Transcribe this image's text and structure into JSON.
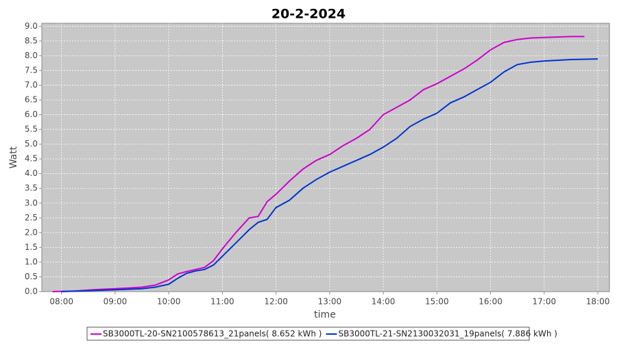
{
  "chart_data": {
    "type": "line",
    "title": "20-2-2024",
    "x_label": "time",
    "y_label": "Watt",
    "xlim": [
      "07:38",
      "18:13"
    ],
    "xticks": [
      "08:00",
      "09:00",
      "10:00",
      "11:00",
      "12:00",
      "13:00",
      "14:00",
      "15:00",
      "16:00",
      "17:00",
      "18:00"
    ],
    "ylim": [
      0,
      9.1
    ],
    "yticks": [
      {
        "value": 0,
        "label": "0.0"
      },
      {
        "value": 0.5,
        "label": "0.5"
      },
      {
        "value": 1,
        "label": "1.0"
      },
      {
        "value": 1.5,
        "label": "1.5"
      },
      {
        "value": 2,
        "label": "2.0"
      },
      {
        "value": 2.5,
        "label": "2.5"
      },
      {
        "value": 3,
        "label": "3.0"
      },
      {
        "value": 3.5,
        "label": "3.5"
      },
      {
        "value": 4,
        "label": "4.0"
      },
      {
        "value": 4.5,
        "label": "4.5"
      },
      {
        "value": 5,
        "label": "5.0"
      },
      {
        "value": 5.5,
        "label": "5.5"
      },
      {
        "value": 6,
        "label": "6.0"
      },
      {
        "value": 6.5,
        "label": "6.5"
      },
      {
        "value": 7,
        "label": "7.0"
      },
      {
        "value": 7.5,
        "label": "7.5"
      },
      {
        "value": 8,
        "label": "8.0"
      },
      {
        "value": 8.5,
        "label": "8.5"
      },
      {
        "value": 9,
        "label": "9.0"
      }
    ],
    "grid": true,
    "series": [
      {
        "name": "SB3000TL-20-SN2100578613_21panels( 8.652 kWh )",
        "color": "#cc00cc",
        "x": [
          "07:50",
          "08:15",
          "08:30",
          "08:45",
          "09:00",
          "09:15",
          "09:30",
          "09:45",
          "10:00",
          "10:10",
          "10:20",
          "10:30",
          "10:40",
          "10:50",
          "11:00",
          "11:15",
          "11:30",
          "11:40",
          "11:50",
          "12:00",
          "12:15",
          "12:30",
          "12:45",
          "13:00",
          "13:15",
          "13:30",
          "13:45",
          "14:00",
          "14:15",
          "14:30",
          "14:45",
          "15:00",
          "15:15",
          "15:30",
          "15:45",
          "16:00",
          "16:15",
          "16:30",
          "16:45",
          "17:00",
          "17:30",
          "17:45"
        ],
        "values": [
          0,
          0.02,
          0.05,
          0.08,
          0.1,
          0.12,
          0.15,
          0.22,
          0.4,
          0.6,
          0.68,
          0.75,
          0.82,
          1.05,
          1.45,
          2.0,
          2.5,
          2.55,
          3.05,
          3.3,
          3.75,
          4.15,
          4.45,
          4.65,
          4.95,
          5.2,
          5.5,
          6.0,
          6.25,
          6.5,
          6.85,
          7.05,
          7.3,
          7.55,
          7.85,
          8.2,
          8.45,
          8.55,
          8.6,
          8.62,
          8.65,
          8.65
        ]
      },
      {
        "name": "SB3000TL-21-SN2130032031_19panels( 7.886 kWh )",
        "color": "#0033cc",
        "x": [
          "08:00",
          "08:30",
          "09:00",
          "09:30",
          "09:45",
          "10:00",
          "10:10",
          "10:20",
          "10:30",
          "10:40",
          "10:50",
          "11:00",
          "11:15",
          "11:30",
          "11:40",
          "11:50",
          "12:00",
          "12:15",
          "12:30",
          "12:45",
          "13:00",
          "13:15",
          "13:30",
          "13:45",
          "14:00",
          "14:15",
          "14:30",
          "14:45",
          "15:00",
          "15:15",
          "15:30",
          "15:45",
          "16:00",
          "16:15",
          "16:30",
          "16:45",
          "17:00",
          "17:30",
          "18:00"
        ],
        "values": [
          0,
          0.03,
          0.06,
          0.1,
          0.15,
          0.25,
          0.45,
          0.62,
          0.7,
          0.75,
          0.9,
          1.2,
          1.65,
          2.1,
          2.35,
          2.45,
          2.85,
          3.1,
          3.5,
          3.8,
          4.05,
          4.25,
          4.45,
          4.65,
          4.9,
          5.2,
          5.6,
          5.85,
          6.05,
          6.4,
          6.6,
          6.85,
          7.1,
          7.45,
          7.7,
          7.78,
          7.82,
          7.87,
          7.89
        ]
      }
    ]
  }
}
